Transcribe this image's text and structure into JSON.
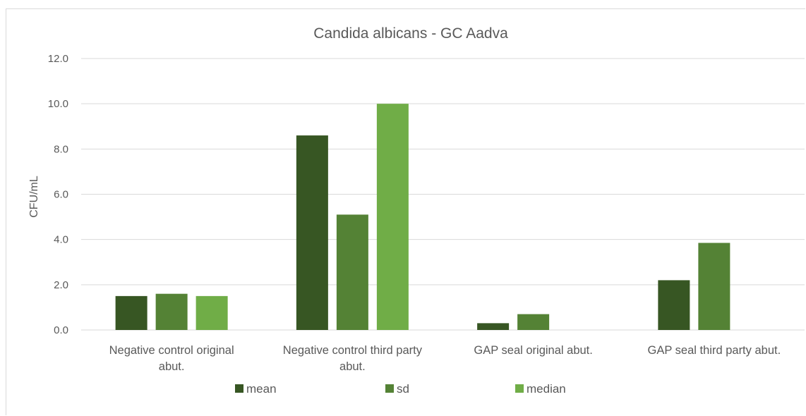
{
  "chart_data": {
    "type": "bar",
    "title": "Candida albicans -  GC Aadva",
    "xlabel": "",
    "ylabel": "CFU/mL",
    "ylim": [
      0,
      12
    ],
    "yticks": [
      "0.0",
      "2.0",
      "4.0",
      "6.0",
      "8.0",
      "10.0",
      "12.0"
    ],
    "grid": true,
    "legend_position": "bottom",
    "categories": [
      [
        "Negative control original",
        "abut."
      ],
      [
        "Negative control third party",
        "abut."
      ],
      [
        "GAP seal original abut."
      ],
      [
        "GAP seal third party abut."
      ]
    ],
    "series": [
      {
        "name": "mean",
        "color": "#375623",
        "values": [
          1.5,
          8.6,
          0.3,
          2.2
        ]
      },
      {
        "name": "sd",
        "color": "#548235",
        "values": [
          1.6,
          5.1,
          0.7,
          3.85
        ]
      },
      {
        "name": "median",
        "color": "#70ad47",
        "values": [
          1.5,
          10.0,
          0,
          0
        ]
      }
    ]
  }
}
